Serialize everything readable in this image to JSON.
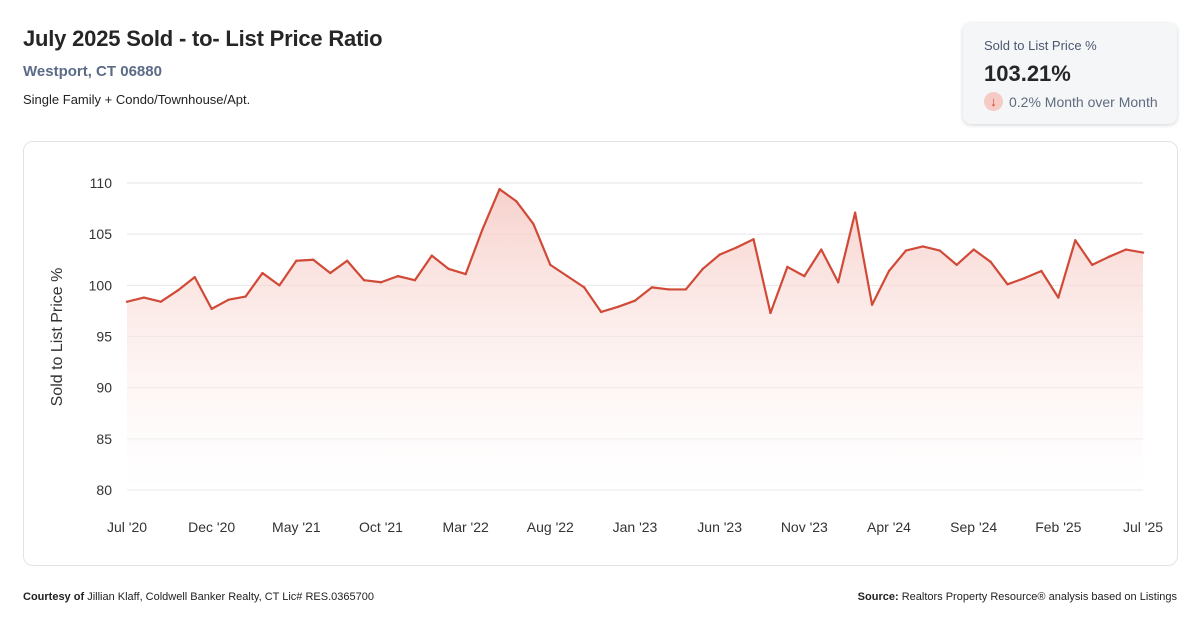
{
  "header": {
    "title": "July 2025 Sold - to- List Price Ratio",
    "location": "Westport, CT 06880",
    "property_types": "Single Family + Condo/Townhouse/Apt."
  },
  "kpi": {
    "label": "Sold to List Price %",
    "value": "103.21%",
    "arrow_icon": "arrow-down-icon",
    "change": "0.2% Month over Month"
  },
  "footer": {
    "courtesy_prefix": "Courtesy of",
    "courtesy_text": "Jillian Klaff, Coldwell Banker Realty, CT Lic# RES.0365700",
    "source_prefix": "Source:",
    "source_text": "Realtors Property Resource® analysis based on Listings"
  },
  "colors": {
    "line": "#d14a37",
    "fill_top": "#f6c9c3",
    "fill_bottom": "#ffffff",
    "grid": "#e6e6e6"
  },
  "chart_data": {
    "type": "area",
    "title": "",
    "xlabel": "",
    "ylabel": "Sold to List Price %",
    "ylim": [
      80,
      110
    ],
    "yticks": [
      80,
      85,
      90,
      95,
      100,
      105,
      110
    ],
    "xtick_labels": [
      "Jul '20",
      "Dec '20",
      "May '21",
      "Oct '21",
      "Mar '22",
      "Aug '22",
      "Jan '23",
      "Jun '23",
      "Nov '23",
      "Apr '24",
      "Sep '24",
      "Feb '25",
      "Jul '25"
    ],
    "grid": true,
    "legend": "none",
    "series": [
      {
        "values": [
          98.4,
          98.8,
          98.4,
          99.5,
          100.8,
          97.7,
          98.6,
          98.9,
          101.2,
          100.0,
          102.4,
          102.5,
          101.2,
          102.4,
          100.5,
          100.3,
          100.9,
          100.5,
          102.9,
          101.6,
          101.1,
          105.5,
          109.4,
          108.2,
          106.0,
          102.0,
          100.9,
          99.8,
          97.4,
          97.9,
          98.5,
          99.8,
          99.6,
          99.6,
          101.6,
          103.0,
          103.7,
          104.5,
          97.3,
          101.8,
          100.9,
          103.5,
          100.3,
          107.1,
          98.1,
          101.4,
          103.4,
          103.8,
          103.4,
          102.0,
          103.5,
          102.3,
          100.1,
          100.7,
          101.4,
          98.8,
          104.4,
          102.0,
          102.8,
          103.5,
          103.2
        ]
      }
    ]
  }
}
